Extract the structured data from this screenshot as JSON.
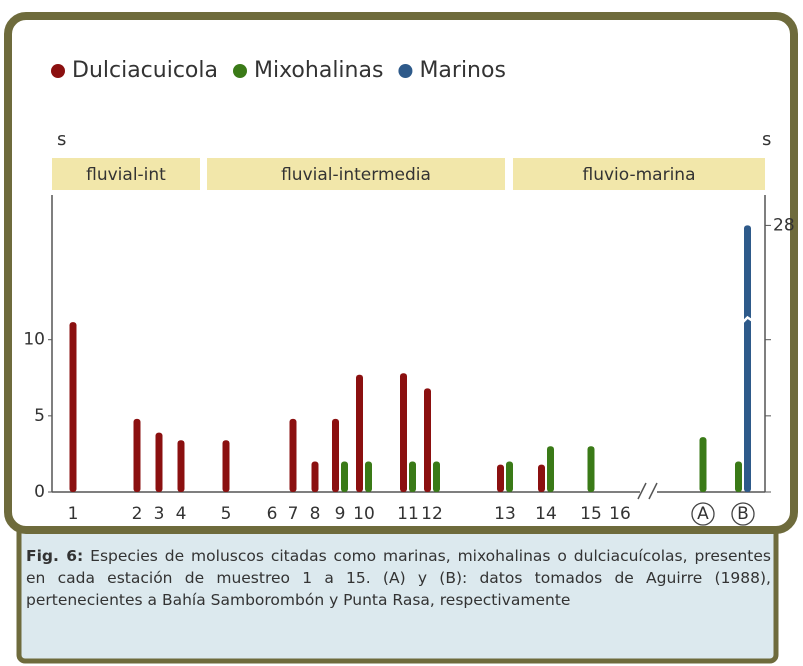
{
  "chart_data": {
    "type": "bar",
    "left_axis_label": "s",
    "right_axis_label": "s",
    "zones": [
      "fluvial-int",
      "fluvial-intermedia",
      "fluvio-marina"
    ],
    "categories": [
      "1",
      "2",
      "3",
      "4",
      "5",
      "6",
      "7",
      "8",
      "9",
      "10",
      "11",
      "12",
      "13",
      "14",
      "15",
      "16",
      "A",
      "B"
    ],
    "series": [
      {
        "name": "Dulciacuicola",
        "color": "#8b1010",
        "values": [
          11.5,
          4.8,
          3.9,
          3.4,
          3.4,
          null,
          4.8,
          2,
          4.8,
          7.7,
          7.8,
          6.8,
          1.8,
          1.8,
          null,
          null,
          null,
          null
        ]
      },
      {
        "name": "Mixohalinas",
        "color": "#3a7a17",
        "values": [
          null,
          null,
          null,
          null,
          null,
          null,
          null,
          null,
          2,
          2,
          2,
          2,
          2,
          3,
          3,
          null,
          3.6,
          2
        ]
      },
      {
        "name": "Marinos",
        "color": "#2e5a8a",
        "values": [
          null,
          null,
          null,
          null,
          null,
          null,
          null,
          null,
          null,
          null,
          null,
          null,
          null,
          null,
          null,
          null,
          null,
          28
        ]
      }
    ],
    "ylim": [
      0,
      19.5
    ],
    "yticks": [
      0,
      5,
      10
    ],
    "y2ticks": [
      28
    ],
    "axis_break": [
      11,
      26
    ],
    "caption_label": "Fig. 6:",
    "caption_text": "Especies de moluscos citadas como marinas, mixohalinas o dulciacuícolas, presentes en cada estación de muestreo 1 a 15.  (A) y (B): datos tomados de Aguirre (1988), pertenecientes a Bahía Samborombón y Punta Rasa, respectivamente"
  }
}
